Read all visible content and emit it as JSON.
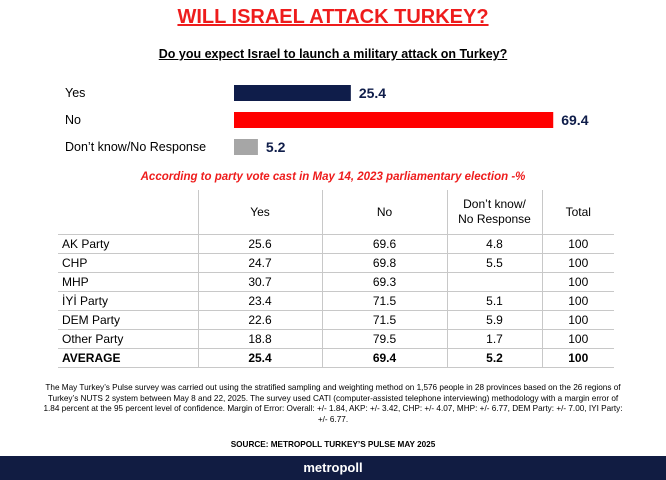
{
  "title": "WILL ISRAEL ATTACK TURKEY?",
  "subtitle": "Do you expect Israel to launch a military attack on Turkey?",
  "colors": {
    "yes": "#0f1d4a",
    "no": "#ff0000",
    "dont_know": "#a6a6a6",
    "title": "#ee1c1c",
    "footer_bg": "#111c42"
  },
  "chart_data": {
    "type": "bar",
    "orientation": "horizontal",
    "categories": [
      "Yes",
      "No",
      "Don’t know/No Response"
    ],
    "values": [
      25.4,
      69.4,
      5.2
    ],
    "value_labels": [
      "25.4",
      "69.4",
      "5.2"
    ],
    "unit": "%"
  },
  "table": {
    "caption": "According to party vote cast in May 14, 2023 parliamentary election -%",
    "headers": {
      "party": "",
      "yes": "Yes",
      "no": "No",
      "dk_line1": "Don’t know/",
      "dk_line2": "No Response",
      "total": "Total"
    },
    "rows": [
      {
        "party": "AK Party",
        "yes": "25.6",
        "no": "69.6",
        "dk": "4.8",
        "total": "100"
      },
      {
        "party": "CHP",
        "yes": "24.7",
        "no": "69.8",
        "dk": "5.5",
        "total": "100"
      },
      {
        "party": "MHP",
        "yes": "30.7",
        "no": "69.3",
        "dk": "",
        "total": "100"
      },
      {
        "party": "İYİ Party",
        "yes": "23.4",
        "no": "71.5",
        "dk": "5.1",
        "total": "100"
      },
      {
        "party": "DEM Party",
        "yes": "22.6",
        "no": "71.5",
        "dk": "5.9",
        "total": "100"
      },
      {
        "party": "Other Party",
        "yes": "18.8",
        "no": "79.5",
        "dk": "1.7",
        "total": "100"
      }
    ],
    "average": {
      "party": "AVERAGE",
      "yes": "25.4",
      "no": "69.4",
      "dk": "5.2",
      "total": "100"
    }
  },
  "note": "The May Turkey’s Pulse survey was carried out using the stratified sampling and weighting method on 1,576 people in 28 provinces based on the 26 regions of Turkey’s NUTS 2 system between May 8 and 22, 2025. The survey used CATI (computer-assisted telephone interviewing) methodology with a margin error of 1.84 percent at the 95 percent level of confidence. Margin of Error: Overall: +/- 1.84, AKP: +/- 3.42, CHP: +/- 4.07, MHP: +/- 6.77, DEM Party: +/- 7.00, IYI Party: +/- 6.77.",
  "source": "SOURCE: METROPOLL TURKEY’S PULSE MAY 2025",
  "footer": "metropoll"
}
